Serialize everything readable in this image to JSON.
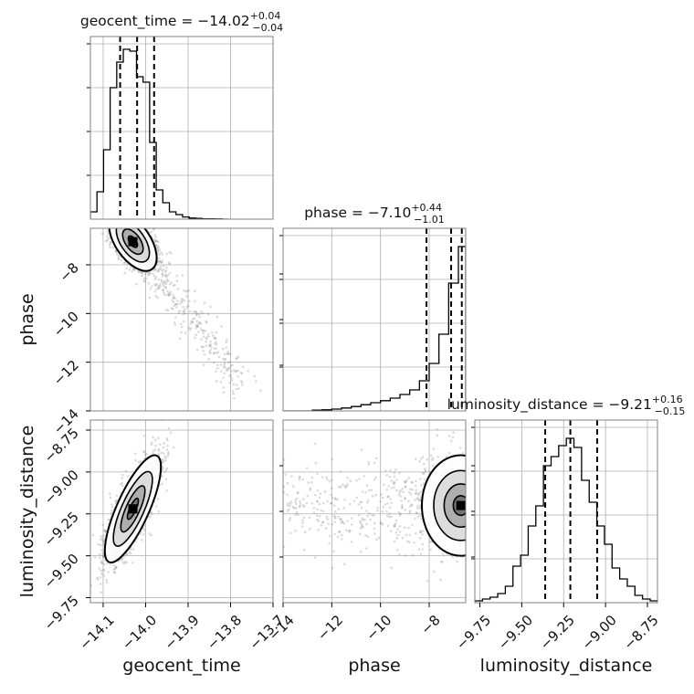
{
  "chart_data": {
    "type": "corner",
    "parameters": [
      "geocent_time",
      "phase",
      "luminosity_distance"
    ],
    "axes": {
      "geocent_time": {
        "label": "geocent_time",
        "range": [
          -14.13,
          -13.7
        ],
        "ticks": [
          -14.1,
          -14.0,
          -13.9,
          -13.8,
          -13.7
        ],
        "tick_labels": [
          "−14.1",
          "−14.0",
          "−13.9",
          "−13.8",
          "−13.7"
        ]
      },
      "phase": {
        "label": "phase",
        "range": [
          -14,
          -6.5
        ],
        "ticks": [
          -14,
          -12,
          -10,
          -8
        ],
        "tick_labels": [
          "−14",
          "−12",
          "−10",
          "−8"
        ]
      },
      "luminosity_distance": {
        "label": "luminosity_distance",
        "range": [
          -9.78,
          -8.69
        ],
        "ticks": [
          -9.75,
          -9.5,
          -9.25,
          -9.0,
          -8.75
        ],
        "tick_labels": [
          "−9.75",
          "−9.50",
          "−9.25",
          "−9.00",
          "−8.75"
        ]
      }
    },
    "titles": [
      {
        "param": "geocent_time",
        "text": "geocent_time = −14.02",
        "plus": "+0.04",
        "minus": "−0.04"
      },
      {
        "param": "phase",
        "text": "phase = −7.10",
        "plus": "+0.44",
        "minus": "−1.01"
      },
      {
        "param": "luminosity_distance",
        "text": "luminosity_distance = −9.21",
        "plus": "+0.16",
        "minus": "−0.15"
      }
    ],
    "histograms": {
      "geocent_time": {
        "bin_edges": [
          -14.13,
          -14.1145,
          -14.099,
          -14.0835,
          -14.068,
          -14.0525,
          -14.037,
          -14.0215,
          -14.006,
          -13.9905,
          -13.975,
          -13.9595,
          -13.944,
          -13.9285,
          -13.913,
          -13.8975,
          -13.882,
          -13.8665,
          -13.851,
          -13.8355,
          -13.82,
          -13.8045
        ],
        "counts": [
          0.04,
          0.15,
          0.38,
          0.72,
          0.86,
          0.93,
          0.92,
          0.78,
          0.75,
          0.42,
          0.16,
          0.09,
          0.04,
          0.025,
          0.012,
          0.006,
          0.004,
          0.002,
          0.002,
          0.001,
          0.0
        ]
      },
      "phase": {
        "bin_edges": [
          -14.0,
          -13.6,
          -13.2,
          -12.8,
          -12.4,
          -12.0,
          -11.6,
          -11.2,
          -10.8,
          -10.4,
          -10.0,
          -9.6,
          -9.2,
          -8.8,
          -8.4,
          -8.0,
          -7.6,
          -7.2,
          -6.8,
          -6.5
        ],
        "counts": [
          0.0,
          0.0,
          0.0,
          0.004,
          0.006,
          0.01,
          0.016,
          0.024,
          0.034,
          0.045,
          0.056,
          0.07,
          0.09,
          0.115,
          0.165,
          0.26,
          0.42,
          0.7,
          0.9
        ]
      },
      "luminosity_distance": {
        "bin_edges": [
          -9.78,
          -9.7345,
          -9.689,
          -9.6435,
          -9.598,
          -9.5525,
          -9.507,
          -9.4615,
          -9.416,
          -9.3705,
          -9.325,
          -9.2795,
          -9.234,
          -9.1885,
          -9.143,
          -9.0975,
          -9.052,
          -9.0065,
          -8.961,
          -8.9155,
          -8.87,
          -8.8245,
          -8.779,
          -8.7335,
          -8.69
        ],
        "counts": [
          0.01,
          0.02,
          0.03,
          0.05,
          0.09,
          0.2,
          0.26,
          0.42,
          0.53,
          0.75,
          0.8,
          0.86,
          0.9,
          0.85,
          0.67,
          0.55,
          0.42,
          0.32,
          0.19,
          0.13,
          0.09,
          0.04,
          0.02,
          0.01
        ]
      }
    },
    "quantiles": {
      "geocent_time": [
        -14.06,
        -14.02,
        -13.98
      ],
      "phase": [
        -8.11,
        -7.1,
        -6.66
      ],
      "luminosity_distance": [
        -9.36,
        -9.21,
        -9.05
      ]
    },
    "joint_2d": [
      {
        "x": "geocent_time",
        "y": "phase",
        "mean": [
          -14.03,
          -7.05
        ],
        "sd": [
          0.028,
          0.6
        ],
        "corr": -0.55,
        "contour_levels": [
          0.39,
          0.86,
          1.39,
          2.0
        ],
        "scatter_tail": "down-right"
      },
      {
        "x": "geocent_time",
        "y": "luminosity_distance",
        "mean": [
          -14.03,
          -9.22
        ],
        "sd": [
          0.033,
          0.16
        ],
        "corr": 0.78,
        "contour_levels": [
          0.39,
          0.86,
          1.39,
          2.0
        ],
        "scatter_tail": "none"
      },
      {
        "x": "phase",
        "y": "luminosity_distance",
        "mean": [
          -6.7,
          -9.2
        ],
        "sd": [
          0.8,
          0.15
        ],
        "corr": 0.0,
        "contour_levels": [
          0.39,
          0.86,
          1.39,
          2.0
        ],
        "scatter_tail": "left"
      }
    ],
    "grid": true,
    "fill_color": "#000000",
    "line_color": "#000000",
    "scatter_color": "#7f7f7f"
  }
}
